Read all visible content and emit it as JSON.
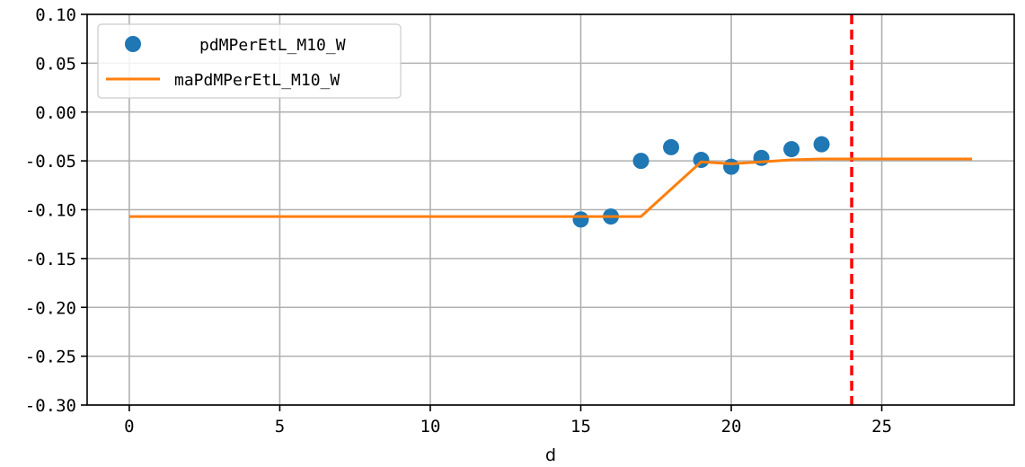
{
  "chart_data": {
    "type": "scatter",
    "xlabel": "d",
    "ylabel": "",
    "xlim": [
      -1.4,
      29.4
    ],
    "ylim": [
      -0.3,
      0.1
    ],
    "xticks": [
      0,
      5,
      10,
      15,
      20,
      25
    ],
    "yticks": [
      0.1,
      0.05,
      0.0,
      -0.05,
      -0.1,
      -0.15,
      -0.2,
      -0.25,
      -0.3
    ],
    "ytick_labels": [
      "0.10",
      "0.05",
      "0.00",
      "-0.05",
      "-0.10",
      "-0.15",
      "-0.20",
      "-0.25",
      "-0.30"
    ],
    "grid": true,
    "legend_position": "top-left",
    "series": [
      {
        "name": "pdMPerEtL_M10_W",
        "kind": "scatter",
        "color": "#1f77b4",
        "x": [
          15,
          16,
          17,
          18,
          19,
          20,
          21,
          22,
          23
        ],
        "y": [
          -0.11,
          -0.107,
          -0.05,
          -0.036,
          -0.049,
          -0.056,
          -0.047,
          -0.038,
          -0.033
        ]
      },
      {
        "name": "maPdMPerEtL_M10_W",
        "kind": "line",
        "color": "#ff7f0e",
        "x": [
          0,
          15,
          16,
          17,
          18,
          19,
          20,
          21,
          22,
          23,
          24,
          25,
          26,
          27,
          28
        ],
        "y": [
          -0.107,
          -0.107,
          -0.107,
          -0.107,
          -0.079,
          -0.051,
          -0.053,
          -0.051,
          -0.049,
          -0.048,
          -0.048,
          -0.048,
          -0.048,
          -0.048,
          -0.048
        ]
      }
    ],
    "vlines": [
      {
        "x": 24,
        "color": "#ff0000",
        "style": "dashed"
      }
    ]
  }
}
